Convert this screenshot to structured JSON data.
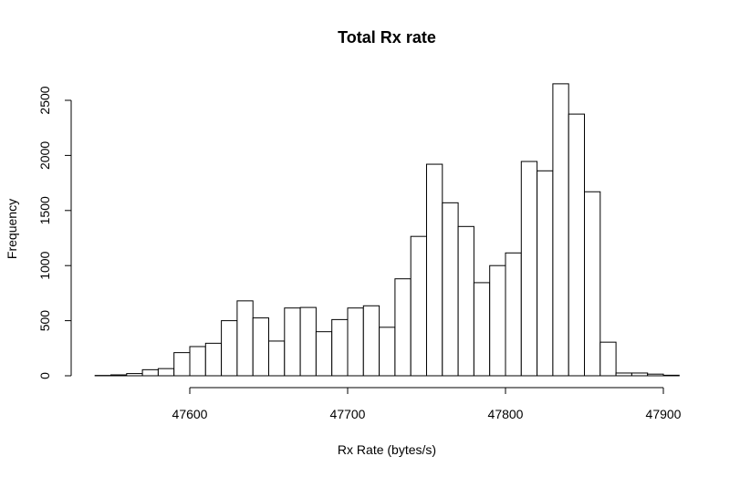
{
  "chart_data": {
    "type": "bar",
    "title": "Total Rx rate",
    "xlabel": "Rx Rate (bytes/s)",
    "ylabel": "Frequency",
    "x_ticks": [
      47600,
      47700,
      47800,
      47900
    ],
    "y_ticks": [
      0,
      500,
      1000,
      1500,
      2000,
      2500
    ],
    "xlim": [
      47540,
      47910
    ],
    "ylim": [
      0,
      2650
    ],
    "grid": false,
    "bin_width": 10,
    "bins": [
      {
        "start": 47540,
        "end": 47550,
        "count": 3
      },
      {
        "start": 47550,
        "end": 47560,
        "count": 8
      },
      {
        "start": 47560,
        "end": 47570,
        "count": 20
      },
      {
        "start": 47570,
        "end": 47580,
        "count": 55
      },
      {
        "start": 47580,
        "end": 47590,
        "count": 65
      },
      {
        "start": 47590,
        "end": 47600,
        "count": 210
      },
      {
        "start": 47600,
        "end": 47610,
        "count": 265
      },
      {
        "start": 47610,
        "end": 47620,
        "count": 295
      },
      {
        "start": 47620,
        "end": 47630,
        "count": 500
      },
      {
        "start": 47630,
        "end": 47640,
        "count": 680
      },
      {
        "start": 47640,
        "end": 47650,
        "count": 525
      },
      {
        "start": 47650,
        "end": 47660,
        "count": 315
      },
      {
        "start": 47660,
        "end": 47670,
        "count": 615
      },
      {
        "start": 47670,
        "end": 47680,
        "count": 620
      },
      {
        "start": 47680,
        "end": 47690,
        "count": 400
      },
      {
        "start": 47690,
        "end": 47700,
        "count": 510
      },
      {
        "start": 47700,
        "end": 47710,
        "count": 615
      },
      {
        "start": 47710,
        "end": 47720,
        "count": 635
      },
      {
        "start": 47720,
        "end": 47730,
        "count": 440
      },
      {
        "start": 47730,
        "end": 47740,
        "count": 880
      },
      {
        "start": 47740,
        "end": 47750,
        "count": 1265
      },
      {
        "start": 47750,
        "end": 47760,
        "count": 1920
      },
      {
        "start": 47760,
        "end": 47770,
        "count": 1570
      },
      {
        "start": 47770,
        "end": 47780,
        "count": 1355
      },
      {
        "start": 47780,
        "end": 47790,
        "count": 845
      },
      {
        "start": 47790,
        "end": 47800,
        "count": 1000
      },
      {
        "start": 47800,
        "end": 47810,
        "count": 1115
      },
      {
        "start": 47810,
        "end": 47820,
        "count": 1945
      },
      {
        "start": 47820,
        "end": 47830,
        "count": 1860
      },
      {
        "start": 47830,
        "end": 47840,
        "count": 2650
      },
      {
        "start": 47840,
        "end": 47850,
        "count": 2375
      },
      {
        "start": 47850,
        "end": 47860,
        "count": 1670
      },
      {
        "start": 47860,
        "end": 47870,
        "count": 305
      },
      {
        "start": 47870,
        "end": 47880,
        "count": 25
      },
      {
        "start": 47880,
        "end": 47890,
        "count": 25
      },
      {
        "start": 47890,
        "end": 47900,
        "count": 15
      },
      {
        "start": 47900,
        "end": 47910,
        "count": 5
      }
    ]
  }
}
